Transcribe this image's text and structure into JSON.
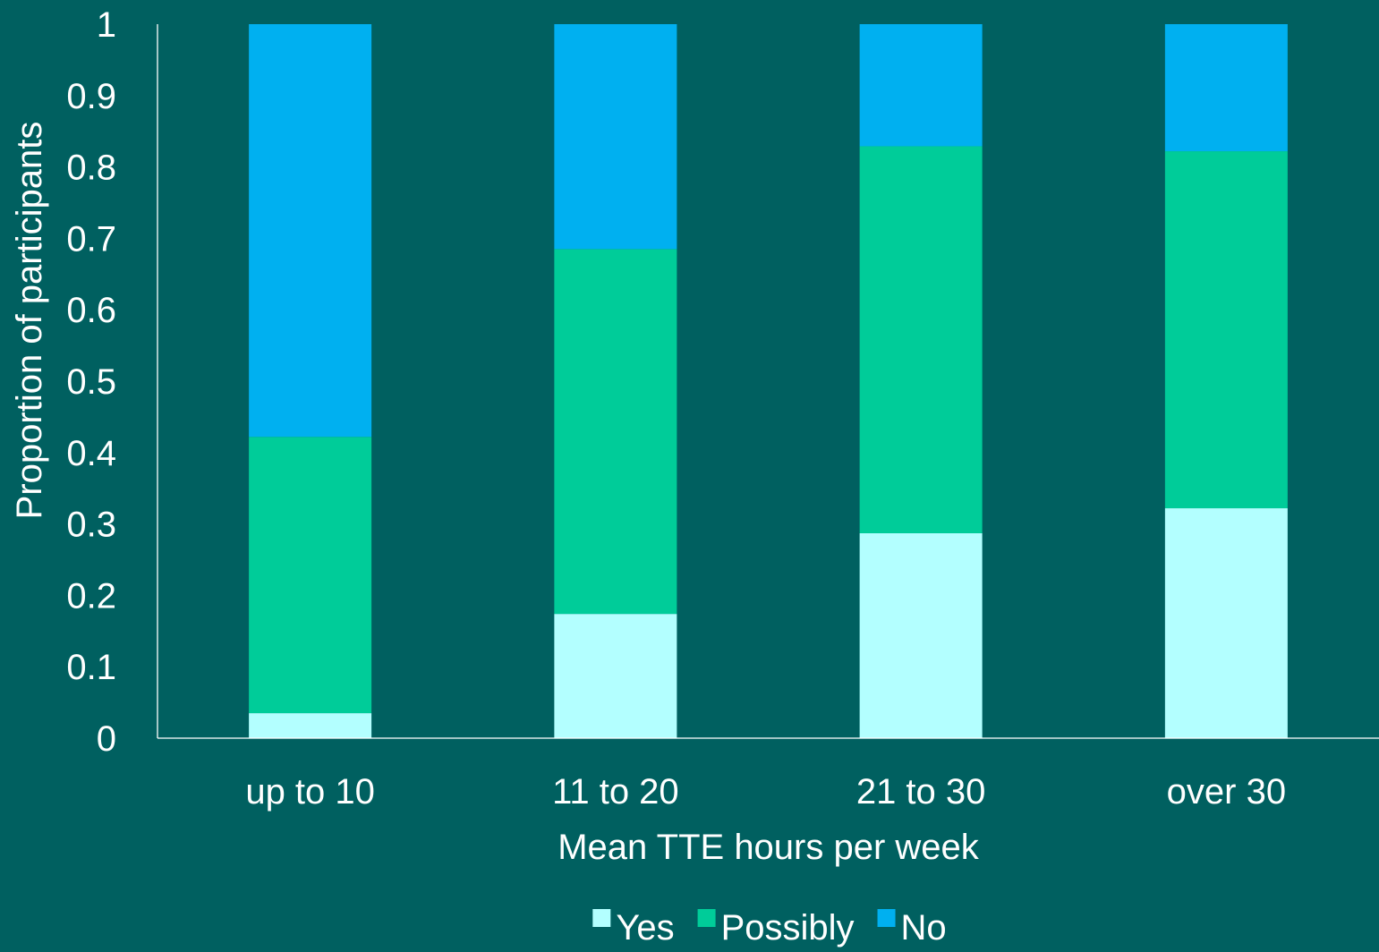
{
  "chart_data": {
    "type": "bar",
    "stacked": true,
    "categories": [
      "up to 10",
      "11 to 20",
      "21 to 30",
      "over 30"
    ],
    "series": [
      {
        "name": "Yes",
        "color": "#B3FFFF",
        "values": [
          0.035,
          0.174,
          0.287,
          0.322
        ]
      },
      {
        "name": "Possibly",
        "color": "#00CC99",
        "values": [
          0.387,
          0.511,
          0.542,
          0.5
        ]
      },
      {
        "name": "No",
        "color": "#00B0F0",
        "values": [
          0.578,
          0.315,
          0.171,
          0.178
        ]
      }
    ],
    "xlabel": "Mean TTE hours per week",
    "ylabel": "Proportion of participants",
    "ylim": [
      0,
      1
    ],
    "yticks": [
      "0",
      "0.1",
      "0.2",
      "0.3",
      "0.4",
      "0.5",
      "0.6",
      "0.7",
      "0.8",
      "0.9",
      "1"
    ],
    "grid": false,
    "legend_position": "bottom",
    "background_color": "#006060",
    "axis_color": "#FFFFFF",
    "text_color": "#FFFFFF"
  }
}
